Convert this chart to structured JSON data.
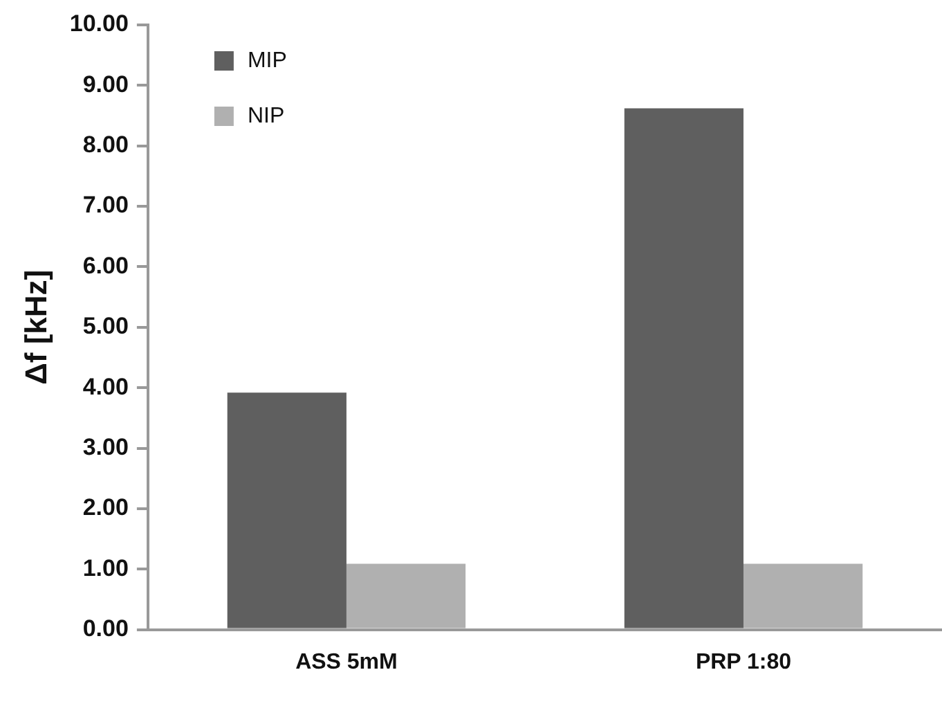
{
  "chart_data": {
    "type": "bar",
    "ylabel": "Δf [kHz]",
    "categories": [
      "ASS 5mM",
      "PRP 1:80"
    ],
    "series": [
      {
        "name": "MIP",
        "color": "#5f5f5f",
        "values": [
          3.92,
          8.62
        ]
      },
      {
        "name": "NIP",
        "color": "#b0b0b0",
        "values": [
          1.09,
          1.09
        ]
      }
    ],
    "ylim": [
      0,
      10
    ],
    "yticks": [
      {
        "value": 0,
        "label": "0.00"
      },
      {
        "value": 1,
        "label": "1.00"
      },
      {
        "value": 2,
        "label": "2.00"
      },
      {
        "value": 3,
        "label": "3.00"
      },
      {
        "value": 4,
        "label": "4.00"
      },
      {
        "value": 5,
        "label": "5.00"
      },
      {
        "value": 6,
        "label": "6.00"
      },
      {
        "value": 7,
        "label": "7.00"
      },
      {
        "value": 8,
        "label": "8.00"
      },
      {
        "value": 9,
        "label": "9.00"
      },
      {
        "value": 10,
        "label": "10.00"
      }
    ],
    "grid": false,
    "legend": "top left"
  }
}
